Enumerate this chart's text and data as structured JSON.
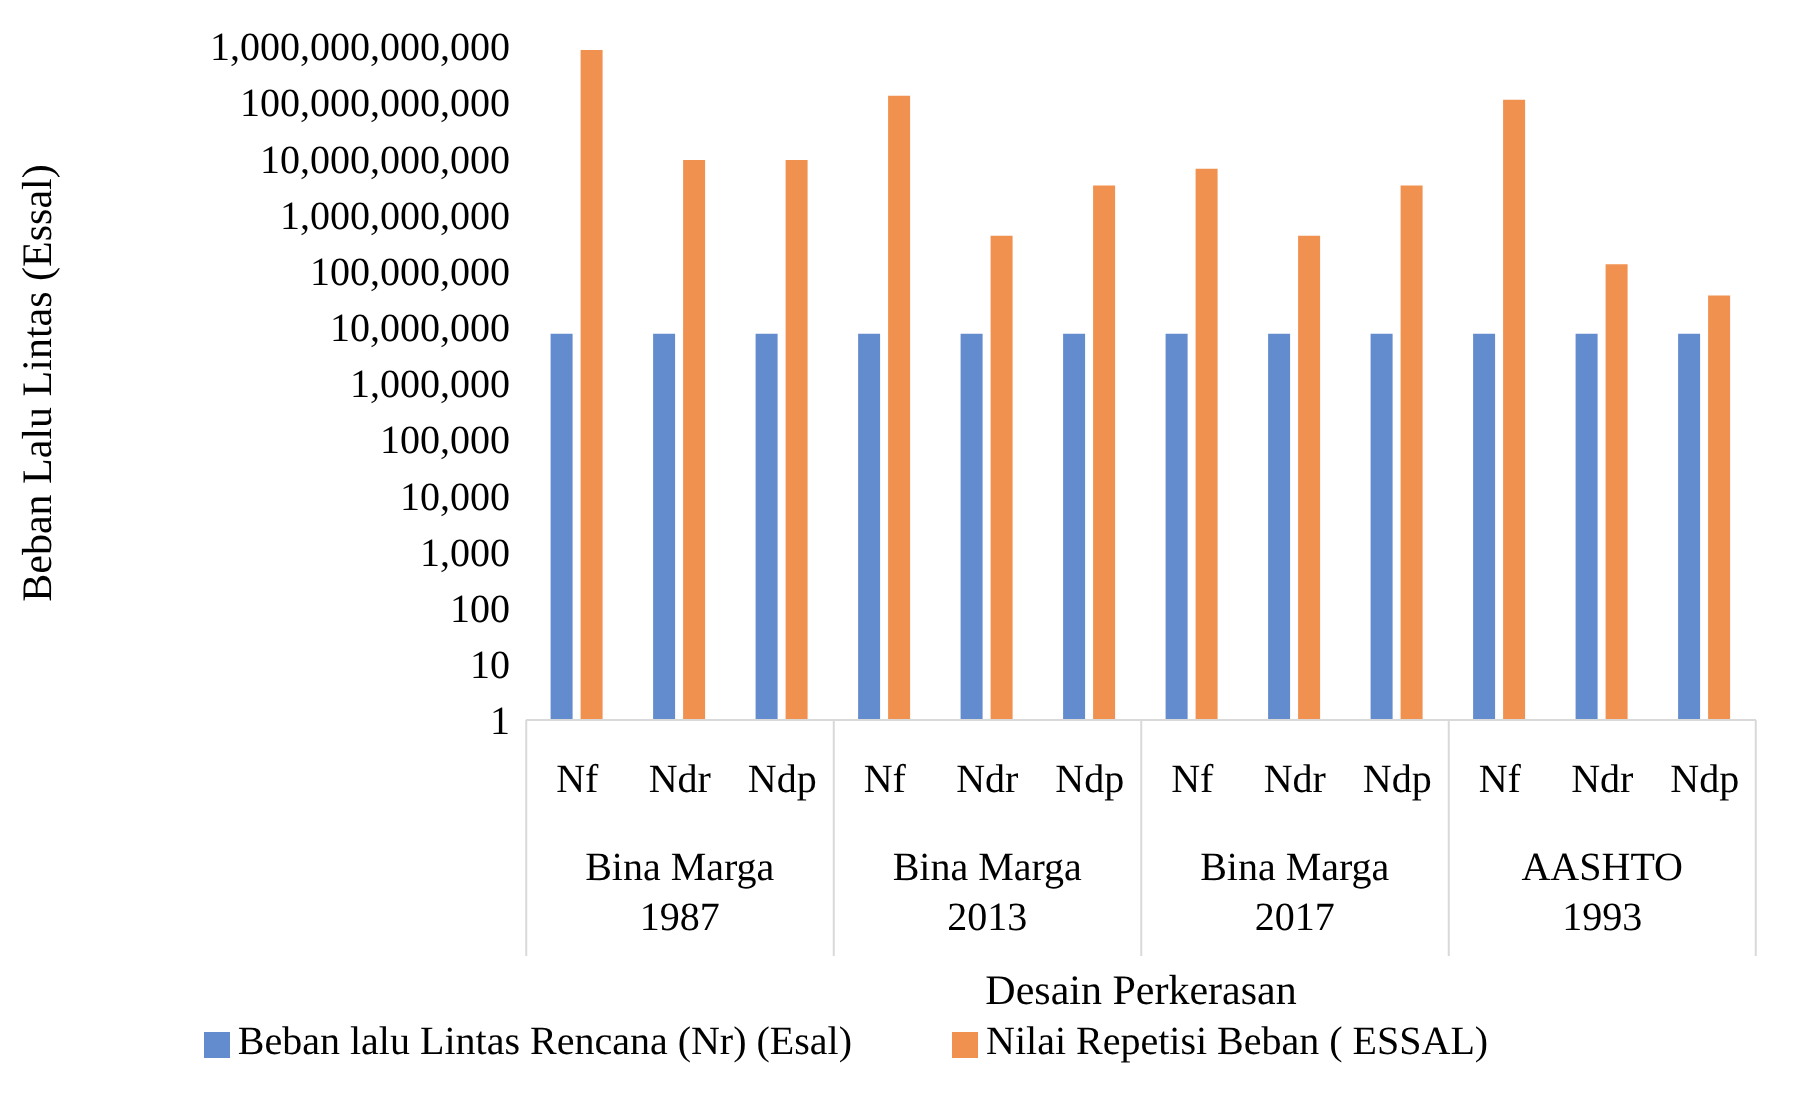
{
  "chart_data": {
    "type": "bar",
    "xlabel": "Desain Perkerasan",
    "ylabel": "Beban Lalu Lintas (Essal)",
    "categories": [
      "Nf",
      "Ndr",
      "Ndp",
      "Nf",
      "Ndr",
      "Ndp",
      "Nf",
      "Ndr",
      "Ndp",
      "Nf",
      "Ndr",
      "Ndp"
    ],
    "annotations": [
      "Bina Marga 1987",
      "Bina Marga 2013",
      "Bina Marga 2017",
      "AASHTO 1993"
    ],
    "series": [
      {
        "name": "Beban lalu Lintas Rencana (Nr) (Esal)",
        "color": "#638ccf",
        "values": [
          7500000,
          7500000,
          7500000,
          7500000,
          7500000,
          7500000,
          7500000,
          7500000,
          7500000,
          7500000,
          7500000,
          7500000
        ]
      },
      {
        "name": "Nilai Repetisi Beban ( ESSAL)",
        "color": "#f0914f",
        "values": [
          850000000000,
          9300000000,
          9300000000,
          130000000000,
          420000000,
          3300000000,
          6500000000,
          420000000,
          3300000000,
          110000000000,
          130000000,
          36000000
        ]
      }
    ],
    "log": "y",
    "ylim": [
      1,
      1000000000000
    ],
    "yticks": [
      {
        "value": 1,
        "label": "1"
      },
      {
        "value": 10,
        "label": "10"
      },
      {
        "value": 100,
        "label": "100"
      },
      {
        "value": 1000,
        "label": "1,000"
      },
      {
        "value": 10000,
        "label": "10,000"
      },
      {
        "value": 100000,
        "label": "100,000"
      },
      {
        "value": 1000000,
        "label": "1,000,000"
      },
      {
        "value": 10000000,
        "label": "10,000,000"
      },
      {
        "value": 100000000,
        "label": "100,000,000"
      },
      {
        "value": 1000000000,
        "label": "1,000,000,000"
      },
      {
        "value": 10000000000,
        "label": "10,000,000,000"
      },
      {
        "value": 100000000000,
        "label": "100,000,000,000"
      },
      {
        "value": 1000000000000,
        "label": "1,000,000,000,000"
      }
    ],
    "grid": false,
    "legend": "bottom"
  }
}
